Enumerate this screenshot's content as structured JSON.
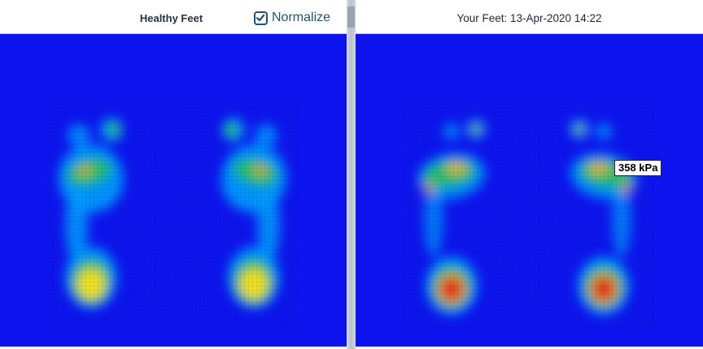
{
  "left_panel": {
    "title": "Healthy Feet",
    "normalize": {
      "label": "Normalize",
      "checked": true
    }
  },
  "right_panel": {
    "title": "Your Feet: 13-Apr-2020 14:22",
    "tooltip": "358 kPa"
  },
  "colors": {
    "background": "#0d14ee",
    "low": "#00a0ff",
    "mid": "#20c060",
    "high": "#f0e020",
    "peak": "#e0101a"
  }
}
